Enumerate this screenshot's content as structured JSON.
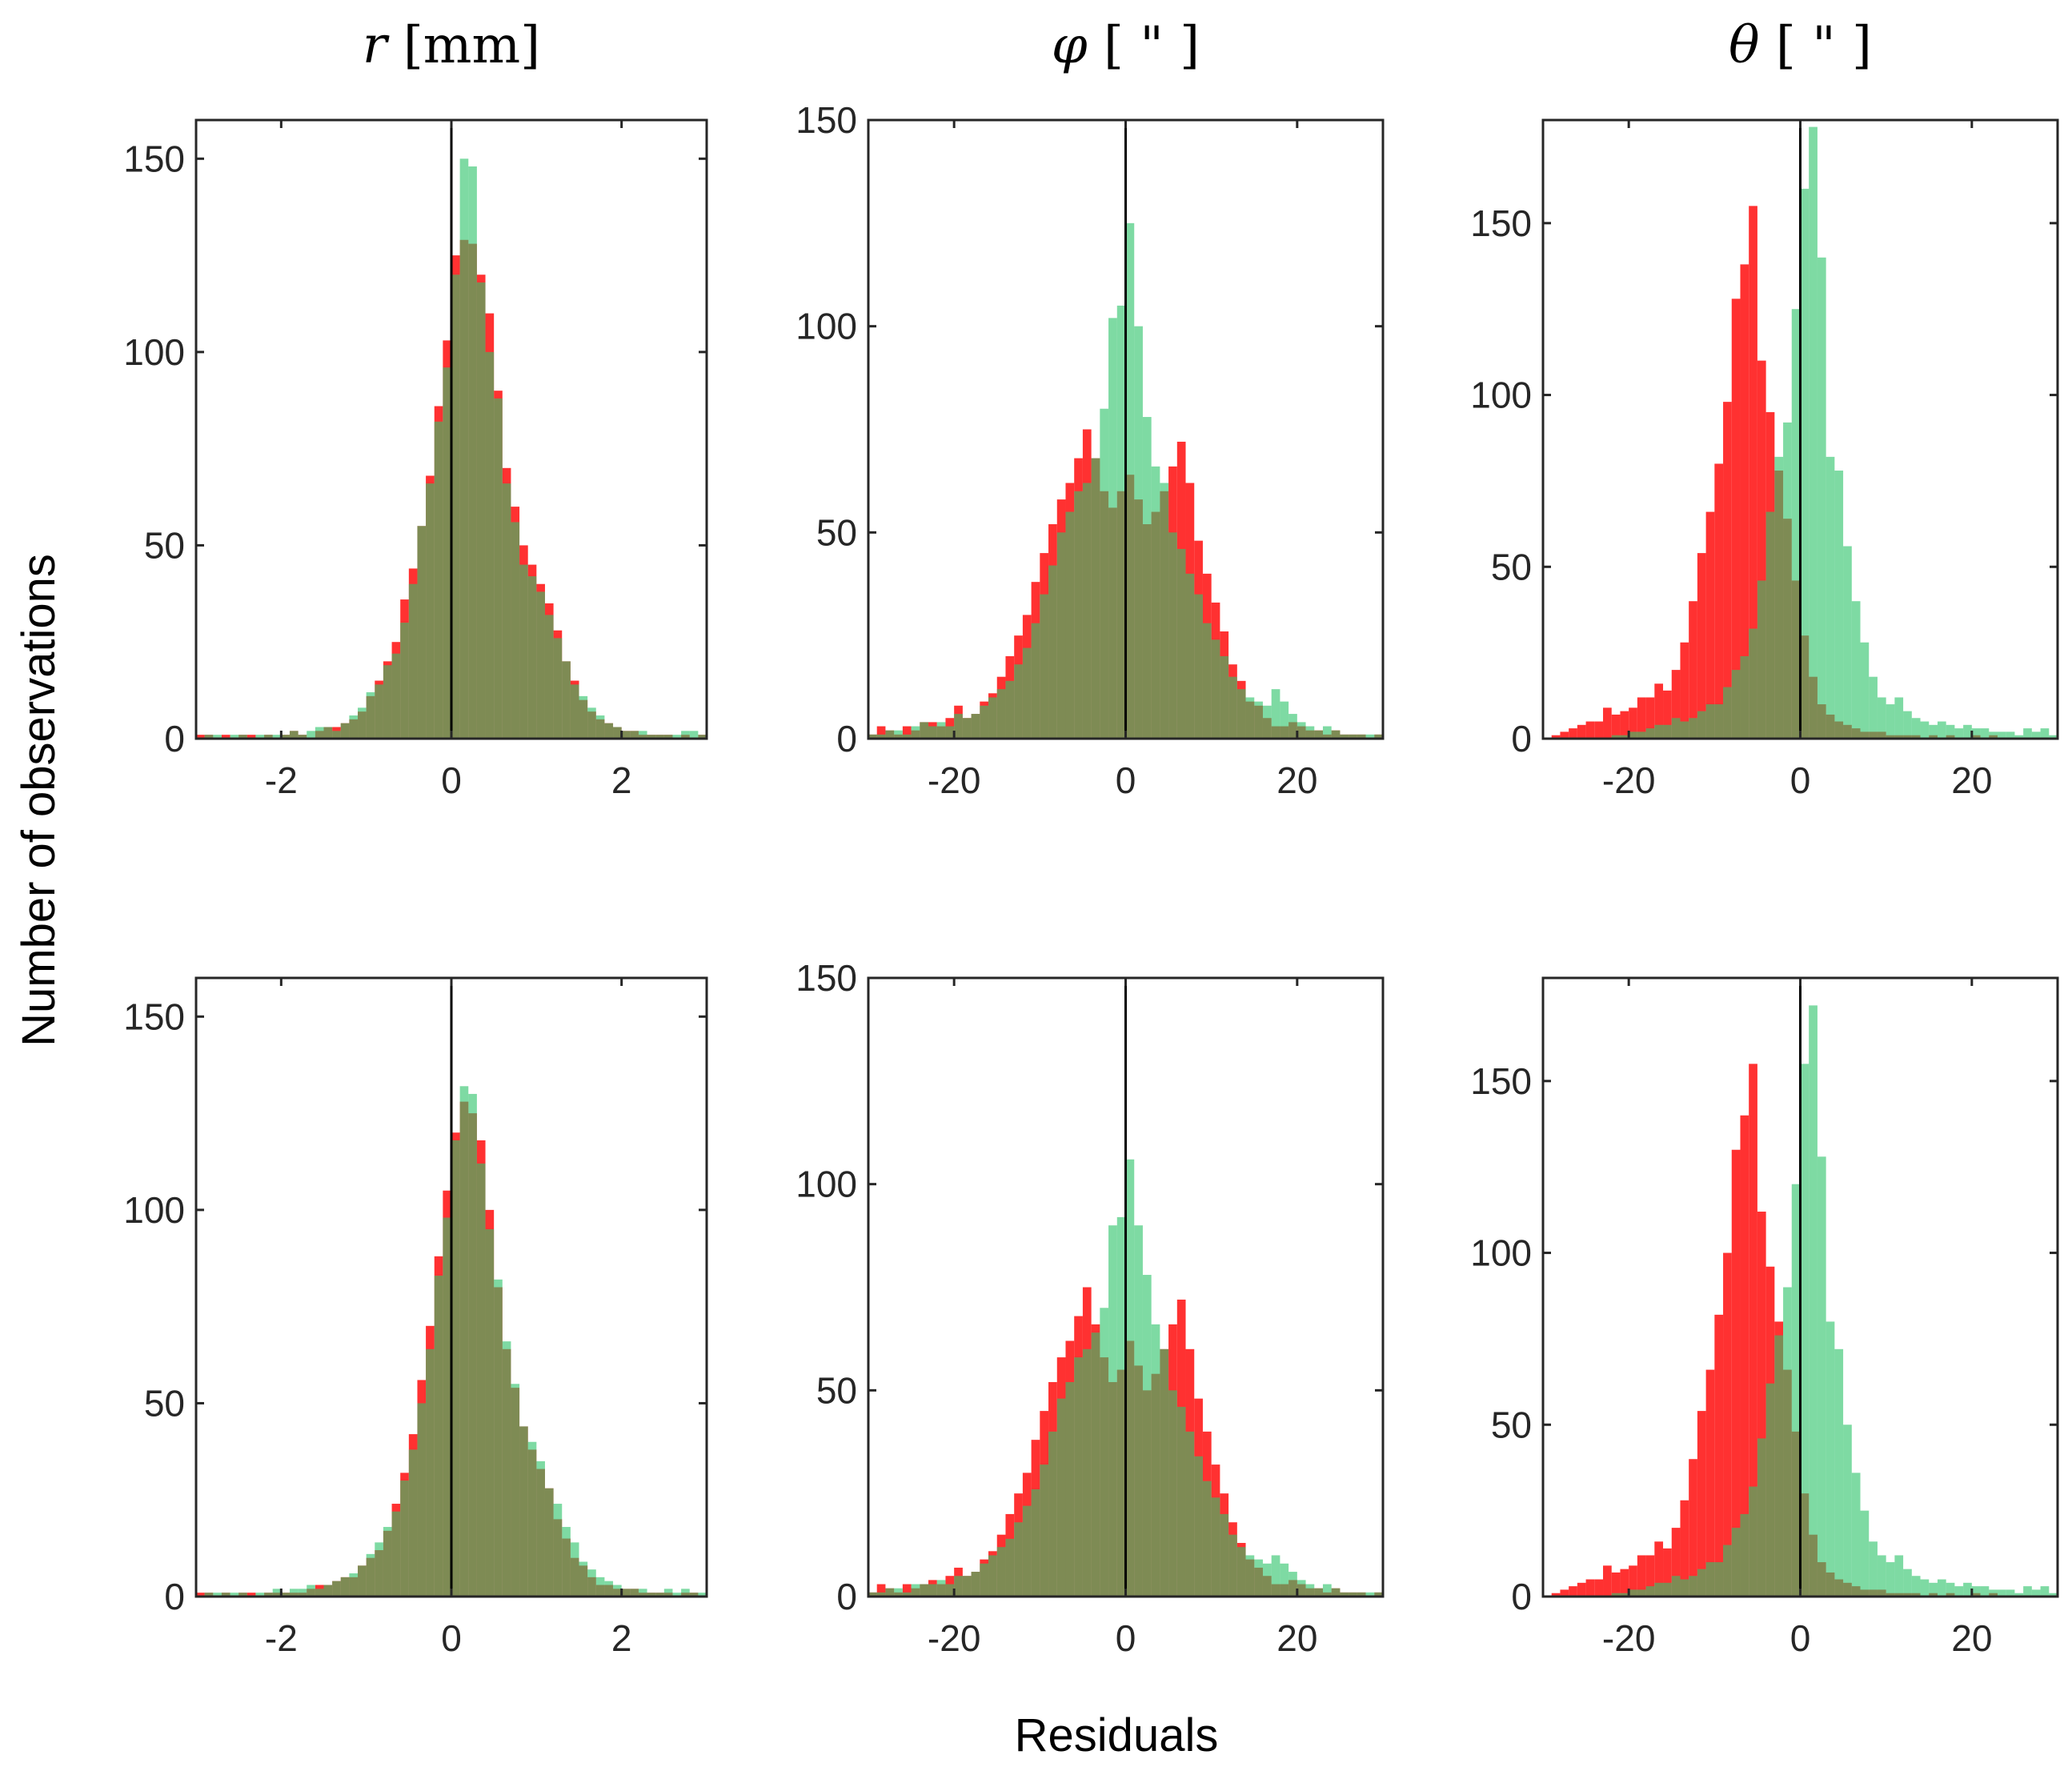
{
  "figure": {
    "ylabel": "Number of observations",
    "xlabel": "Residuals",
    "colors": {
      "red": "#ff2020",
      "green": "#2ec46a",
      "zero_line": "#000000"
    }
  },
  "chart_data": [
    {
      "type": "bar",
      "title_symbol": "r",
      "title_unit": "[mm]",
      "xlim": [
        -3,
        3
      ],
      "ylim": [
        0,
        160
      ],
      "xticks": [
        -2,
        0,
        2
      ],
      "yticks": [
        0,
        50,
        100,
        150
      ],
      "bin_start": -3,
      "bin_width": 0.1,
      "series": [
        {
          "name": "red",
          "values": [
            1,
            1,
            0,
            1,
            0,
            1,
            1,
            0,
            1,
            0,
            1,
            2,
            1,
            0,
            2,
            3,
            3,
            4,
            5,
            7,
            11,
            15,
            20,
            25,
            36,
            44,
            55,
            68,
            86,
            103,
            125,
            129,
            128,
            120,
            110,
            90,
            70,
            60,
            50,
            45,
            40,
            35,
            28,
            20,
            15,
            10,
            7,
            5,
            4,
            3,
            2,
            2,
            1,
            1,
            1,
            1,
            0,
            1,
            0,
            1
          ]
        },
        {
          "name": "green",
          "values": [
            0,
            1,
            1,
            0,
            1,
            1,
            0,
            1,
            1,
            1,
            1,
            2,
            1,
            2,
            3,
            3,
            2,
            4,
            6,
            8,
            12,
            14,
            19,
            22,
            30,
            40,
            55,
            66,
            82,
            96,
            120,
            150,
            148,
            118,
            100,
            88,
            66,
            56,
            45,
            42,
            38,
            32,
            26,
            20,
            14,
            11,
            8,
            6,
            4,
            3,
            2,
            2,
            2,
            1,
            1,
            1,
            1,
            2,
            2,
            1
          ]
        }
      ]
    },
    {
      "type": "bar",
      "title_symbol": "φ",
      "title_unit": "[ \" ]",
      "xlim": [
        -30,
        30
      ],
      "ylim": [
        0,
        150
      ],
      "xticks": [
        -20,
        0,
        20
      ],
      "yticks": [
        0,
        50,
        100,
        150
      ],
      "bin_start": -30,
      "bin_width": 1,
      "series": [
        {
          "name": "red",
          "values": [
            1,
            3,
            2,
            1,
            3,
            2,
            4,
            4,
            3,
            5,
            8,
            5,
            6,
            9,
            11,
            15,
            20,
            25,
            30,
            38,
            45,
            52,
            58,
            62,
            68,
            75,
            68,
            60,
            56,
            60,
            64,
            58,
            52,
            55,
            60,
            66,
            72,
            62,
            48,
            40,
            33,
            26,
            18,
            14,
            9,
            8,
            5,
            3,
            3,
            4,
            3,
            2,
            2,
            1,
            2,
            1,
            1,
            1,
            0,
            1
          ]
        },
        {
          "name": "green",
          "values": [
            1,
            1,
            2,
            2,
            1,
            3,
            4,
            3,
            4,
            3,
            6,
            5,
            6,
            8,
            10,
            12,
            14,
            18,
            22,
            28,
            35,
            42,
            50,
            55,
            60,
            62,
            68,
            80,
            102,
            105,
            125,
            100,
            78,
            66,
            62,
            50,
            46,
            40,
            35,
            28,
            24,
            20,
            15,
            12,
            10,
            9,
            8,
            12,
            9,
            6,
            4,
            3,
            2,
            3,
            2,
            1,
            1,
            1,
            1,
            1
          ]
        }
      ]
    },
    {
      "type": "bar",
      "title_symbol": "θ",
      "title_unit": "[ \" ]",
      "xlim": [
        -30,
        30
      ],
      "ylim": [
        0,
        180
      ],
      "xticks": [
        -20,
        0,
        20
      ],
      "yticks": [
        0,
        50,
        100,
        150
      ],
      "bin_start": -30,
      "bin_width": 1,
      "series": [
        {
          "name": "red",
          "values": [
            0,
            1,
            2,
            3,
            4,
            5,
            5,
            9,
            7,
            8,
            9,
            12,
            12,
            16,
            14,
            20,
            28,
            40,
            54,
            66,
            80,
            98,
            128,
            138,
            155,
            110,
            95,
            78,
            64,
            46,
            30,
            18,
            10,
            7,
            5,
            4,
            3,
            2,
            2,
            2,
            1,
            1,
            1,
            1,
            0,
            1,
            0,
            1,
            0,
            0,
            1,
            0,
            1,
            0,
            0,
            0,
            0,
            0,
            0,
            0
          ]
        },
        {
          "name": "green",
          "values": [
            0,
            0,
            0,
            0,
            0,
            0,
            0,
            0,
            1,
            1,
            2,
            2,
            3,
            4,
            4,
            6,
            5,
            6,
            8,
            10,
            10,
            15,
            20,
            24,
            32,
            46,
            66,
            82,
            92,
            125,
            160,
            178,
            140,
            82,
            78,
            56,
            40,
            28,
            18,
            12,
            10,
            12,
            8,
            6,
            5,
            4,
            5,
            4,
            3,
            4,
            3,
            3,
            2,
            2,
            2,
            1,
            3,
            2,
            3,
            1
          ]
        }
      ]
    },
    {
      "type": "bar",
      "title_symbol": "",
      "title_unit": "",
      "xlim": [
        -3,
        3
      ],
      "ylim": [
        0,
        160
      ],
      "xticks": [
        -2,
        0,
        2
      ],
      "yticks": [
        0,
        50,
        100,
        150
      ],
      "bin_start": -3,
      "bin_width": 0.1,
      "series": [
        {
          "name": "red",
          "values": [
            1,
            1,
            0,
            1,
            0,
            1,
            1,
            0,
            1,
            1,
            1,
            1,
            1,
            2,
            3,
            3,
            4,
            5,
            5,
            8,
            10,
            12,
            17,
            24,
            32,
            42,
            56,
            70,
            88,
            105,
            120,
            128,
            125,
            118,
            100,
            80,
            64,
            54,
            44,
            38,
            33,
            28,
            20,
            15,
            10,
            8,
            5,
            3,
            3,
            2,
            2,
            2,
            1,
            1,
            1,
            1,
            0,
            1,
            1,
            0
          ]
        },
        {
          "name": "green",
          "values": [
            0,
            1,
            1,
            1,
            1,
            1,
            0,
            1,
            1,
            2,
            1,
            2,
            2,
            3,
            2,
            3,
            4,
            5,
            6,
            8,
            11,
            14,
            18,
            22,
            30,
            38,
            50,
            64,
            83,
            98,
            118,
            132,
            130,
            112,
            95,
            82,
            66,
            55,
            44,
            40,
            35,
            28,
            24,
            18,
            14,
            9,
            7,
            5,
            4,
            3,
            2,
            2,
            2,
            1,
            1,
            2,
            1,
            2,
            1,
            1
          ]
        }
      ]
    },
    {
      "type": "bar",
      "title_symbol": "",
      "title_unit": "",
      "xlim": [
        -30,
        30
      ],
      "ylim": [
        0,
        150
      ],
      "xticks": [
        -20,
        0,
        20
      ],
      "yticks": [
        0,
        50,
        100,
        150
      ],
      "bin_start": -30,
      "bin_width": 1,
      "series": [
        {
          "name": "red",
          "values": [
            1,
            3,
            2,
            1,
            3,
            2,
            3,
            4,
            3,
            5,
            7,
            5,
            6,
            9,
            11,
            15,
            20,
            25,
            30,
            38,
            45,
            52,
            58,
            62,
            68,
            75,
            66,
            58,
            52,
            55,
            62,
            56,
            50,
            54,
            60,
            66,
            72,
            60,
            48,
            40,
            32,
            25,
            18,
            13,
            9,
            7,
            5,
            3,
            3,
            4,
            3,
            2,
            2,
            1,
            2,
            1,
            1,
            1,
            0,
            1
          ]
        },
        {
          "name": "green",
          "values": [
            1,
            1,
            2,
            2,
            1,
            3,
            3,
            3,
            4,
            3,
            5,
            5,
            6,
            8,
            10,
            12,
            14,
            18,
            22,
            26,
            32,
            40,
            48,
            52,
            58,
            60,
            64,
            70,
            90,
            92,
            106,
            90,
            78,
            66,
            60,
            50,
            46,
            40,
            34,
            28,
            24,
            20,
            15,
            12,
            10,
            9,
            8,
            10,
            8,
            6,
            4,
            3,
            2,
            3,
            2,
            1,
            1,
            1,
            1,
            1
          ]
        }
      ]
    },
    {
      "type": "bar",
      "title_symbol": "",
      "title_unit": "",
      "xlim": [
        -30,
        30
      ],
      "ylim": [
        0,
        180
      ],
      "xticks": [
        -20,
        0,
        20
      ],
      "yticks": [
        0,
        50,
        100,
        150
      ],
      "bin_start": -30,
      "bin_width": 1,
      "series": [
        {
          "name": "red",
          "values": [
            0,
            1,
            2,
            3,
            4,
            5,
            5,
            9,
            7,
            8,
            9,
            12,
            12,
            16,
            14,
            20,
            28,
            40,
            54,
            66,
            82,
            100,
            130,
            140,
            155,
            112,
            96,
            80,
            66,
            48,
            30,
            18,
            10,
            7,
            5,
            4,
            3,
            2,
            2,
            2,
            1,
            1,
            1,
            1,
            0,
            1,
            0,
            1,
            0,
            0,
            1,
            0,
            1,
            0,
            0,
            0,
            0,
            0,
            0,
            0
          ]
        },
        {
          "name": "green",
          "values": [
            0,
            0,
            0,
            0,
            0,
            0,
            0,
            0,
            1,
            1,
            2,
            2,
            3,
            4,
            4,
            6,
            5,
            6,
            8,
            10,
            10,
            15,
            20,
            24,
            32,
            46,
            62,
            76,
            90,
            120,
            155,
            172,
            128,
            80,
            72,
            50,
            36,
            25,
            16,
            12,
            10,
            12,
            8,
            6,
            5,
            4,
            5,
            4,
            3,
            4,
            3,
            3,
            2,
            2,
            2,
            1,
            3,
            2,
            3,
            1
          ]
        }
      ]
    }
  ]
}
